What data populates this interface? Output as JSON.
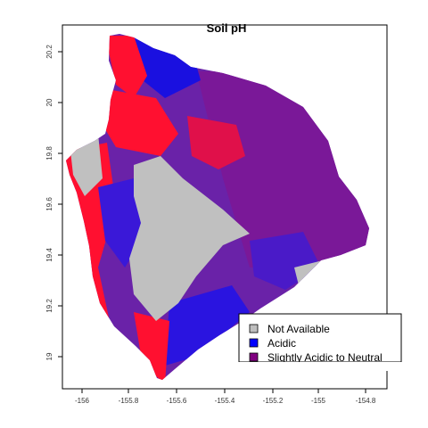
{
  "title": "Soil pH",
  "axes": {
    "x_ticks": [
      "-156",
      "-155.8",
      "-155.6",
      "-155.4",
      "-155.2",
      "-155",
      "-154.8"
    ],
    "y_ticks": [
      "19",
      "19.2",
      "19.4",
      "19.6",
      "19.8",
      "20",
      "20.2"
    ]
  },
  "legend": {
    "items": [
      {
        "label": "Not Available",
        "color": "#bebebe"
      },
      {
        "label": "Acidic",
        "color": "#0000ff"
      },
      {
        "label": "Slightly Acidic to Neutral",
        "color": "#800080"
      }
    ]
  },
  "colors": {
    "acidic": "#1a10e0",
    "slightly_acidic": "#7a1898",
    "red_zone": "#ff1030",
    "not_available": "#c0c0c0"
  }
}
